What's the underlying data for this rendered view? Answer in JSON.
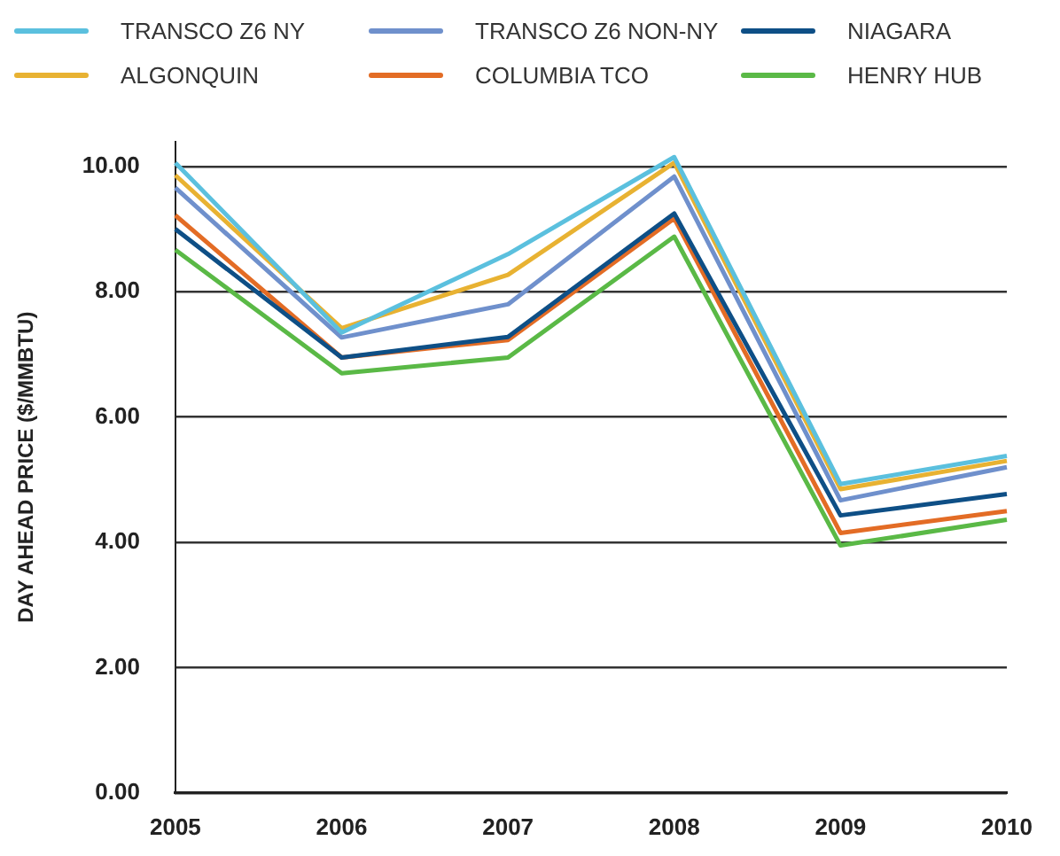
{
  "chart_data": {
    "type": "line",
    "ylabel": "DAY AHEAD PRICE ($/MMBTU)",
    "categories": [
      "2005",
      "2006",
      "2007",
      "2008",
      "2009",
      "2010"
    ],
    "series": [
      {
        "name": "TRANSCO Z6 NY",
        "color": "#5bc0de",
        "values": [
          10.06,
          7.35,
          8.6,
          10.15,
          4.93,
          5.38
        ]
      },
      {
        "name": "TRANSCO Z6 NON-NY",
        "color": "#6f90cc",
        "values": [
          9.66,
          7.27,
          7.8,
          9.84,
          4.67,
          5.2
        ]
      },
      {
        "name": "NIAGARA",
        "color": "#0e4f86",
        "values": [
          9.0,
          6.95,
          7.28,
          9.25,
          4.43,
          4.77
        ]
      },
      {
        "name": "ALGONQUIN",
        "color": "#e8b232",
        "values": [
          9.86,
          7.42,
          8.27,
          10.06,
          4.85,
          5.3
        ]
      },
      {
        "name": "COLUMBIA TCO",
        "color": "#e36c25",
        "values": [
          9.22,
          6.95,
          7.23,
          9.17,
          4.15,
          4.5
        ]
      },
      {
        "name": "HENRY HUB",
        "color": "#5ab946",
        "values": [
          8.67,
          6.7,
          6.95,
          8.88,
          3.95,
          4.36
        ]
      }
    ],
    "ylim": [
      0,
      10.4
    ],
    "yticks": [
      {
        "value": 0,
        "label": "0.00"
      },
      {
        "value": 2,
        "label": "2.00"
      },
      {
        "value": 4,
        "label": "4.00"
      },
      {
        "value": 6,
        "label": "6.00"
      },
      {
        "value": 8,
        "label": "8.00"
      },
      {
        "value": 10,
        "label": "10.00"
      }
    ],
    "grid": "y",
    "legend": "top",
    "marker": "none",
    "line_style": "solid"
  }
}
